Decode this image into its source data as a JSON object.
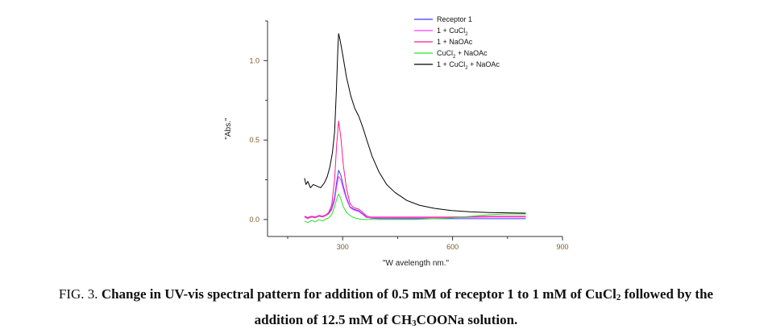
{
  "chart_data": {
    "type": "line",
    "title": "",
    "xlabel": "\"W avelength nm.\"",
    "ylabel": "\"Abs.\"",
    "xlim": [
      95,
      900
    ],
    "ylim": [
      -0.107,
      1.25
    ],
    "xticks": [
      300,
      600,
      900
    ],
    "xtick_labels": [
      "300",
      "600",
      "900"
    ],
    "xminor_ticks": [
      150,
      450,
      750
    ],
    "yticks": [
      0.0,
      0.5,
      1.0
    ],
    "ytick_labels": [
      "0.0",
      "0.5",
      "1.0"
    ],
    "yminor_ticks": [
      0.25,
      0.75,
      1.25
    ],
    "grid": false,
    "legend_position": "top-right",
    "series": [
      {
        "name": "Receptor 1",
        "legend_label": "Receptor 1",
        "color": "#3a3aff",
        "x": [
          196,
          205,
          215,
          225,
          235,
          245,
          255,
          262,
          270,
          278,
          284,
          289,
          295,
          302,
          310,
          320,
          330,
          344,
          355,
          365,
          377,
          400,
          500,
          600,
          700,
          800
        ],
        "y": [
          0.02,
          0.01,
          0.02,
          0.015,
          0.025,
          0.02,
          0.03,
          0.04,
          0.07,
          0.14,
          0.24,
          0.31,
          0.28,
          0.21,
          0.14,
          0.08,
          0.065,
          0.055,
          0.035,
          0.015,
          0.008,
          0.006,
          0.005,
          0.005,
          0.005,
          0.005
        ]
      },
      {
        "name": "1 + CuCl2",
        "legend_label": "1 + CuCl",
        "legend_sub": "2",
        "color": "#ff3cff",
        "x": [
          196,
          205,
          215,
          225,
          235,
          245,
          255,
          262,
          270,
          278,
          284,
          289,
          295,
          302,
          310,
          320,
          330,
          344,
          355,
          365,
          377,
          400,
          500,
          600,
          700,
          800
        ],
        "y": [
          0.015,
          0.005,
          0.015,
          0.01,
          0.02,
          0.015,
          0.025,
          0.035,
          0.06,
          0.12,
          0.21,
          0.27,
          0.25,
          0.19,
          0.13,
          0.075,
          0.06,
          0.05,
          0.03,
          0.012,
          0.01,
          0.01,
          0.01,
          0.012,
          0.015,
          0.015
        ]
      },
      {
        "name": "1 + NaOAc",
        "legend_label": "1 + NaOAc",
        "color": "#ff1a8c",
        "x": [
          196,
          205,
          215,
          225,
          235,
          245,
          255,
          262,
          270,
          278,
          284,
          289,
          295,
          302,
          310,
          320,
          330,
          344,
          355,
          365,
          377,
          400,
          500,
          600,
          700,
          800
        ],
        "y": [
          0.02,
          0.012,
          0.02,
          0.015,
          0.025,
          0.02,
          0.03,
          0.045,
          0.09,
          0.25,
          0.48,
          0.62,
          0.52,
          0.34,
          0.2,
          0.1,
          0.075,
          0.065,
          0.045,
          0.022,
          0.015,
          0.015,
          0.015,
          0.015,
          0.02,
          0.02
        ]
      },
      {
        "name": "CuCl2 + NaOAc",
        "legend_label": "CuCl",
        "legend_sub": "2",
        "legend_suffix": " + NaOAc",
        "color": "#22e622",
        "x": [
          196,
          205,
          215,
          225,
          235,
          245,
          255,
          262,
          270,
          278,
          284,
          289,
          295,
          302,
          310,
          320,
          330,
          344,
          355,
          377,
          400,
          500,
          550,
          600,
          650,
          700,
          750,
          800
        ],
        "y": [
          -0.01,
          -0.02,
          -0.005,
          -0.015,
          0.0,
          -0.01,
          0.005,
          0.01,
          0.03,
          0.08,
          0.13,
          0.16,
          0.13,
          0.08,
          0.045,
          0.025,
          0.012,
          0.004,
          0.0,
          0.0,
          0.0,
          0.0,
          0.005,
          0.01,
          0.02,
          0.03,
          0.035,
          0.035
        ]
      },
      {
        "name": "1 + CuCl2 + NaOAc",
        "legend_label": "1 + CuCl",
        "legend_sub": "2",
        "legend_suffix": " + NaOAc",
        "color": "#000000",
        "x": [
          196,
          200,
          205,
          212,
          220,
          230,
          240,
          250,
          258,
          265,
          272,
          278,
          283,
          287,
          289,
          293,
          300,
          310,
          322,
          333,
          344,
          355,
          366,
          380,
          399,
          420,
          443,
          475,
          509,
          550,
          597,
          650,
          700,
          750,
          800
        ],
        "y": [
          0.26,
          0.22,
          0.24,
          0.2,
          0.22,
          0.21,
          0.2,
          0.23,
          0.27,
          0.33,
          0.42,
          0.55,
          0.82,
          1.08,
          1.17,
          1.13,
          1.04,
          0.9,
          0.78,
          0.7,
          0.65,
          0.58,
          0.5,
          0.4,
          0.3,
          0.22,
          0.17,
          0.12,
          0.09,
          0.07,
          0.056,
          0.048,
          0.044,
          0.042,
          0.04
        ]
      }
    ]
  },
  "caption": {
    "line1_prefix": "FIG. 3. ",
    "line1_bold": "Change in UV-vis spectral pattern for addition of 0.5 mM of receptor 1 to 1 mM of CuCl",
    "line1_sub": "2",
    "line1_bold_suffix": " followed by the",
    "line2_bold": "addition of 12.5 mM of CH",
    "line2_sub": "3",
    "line2_bold_suffix": "COONa solution."
  }
}
